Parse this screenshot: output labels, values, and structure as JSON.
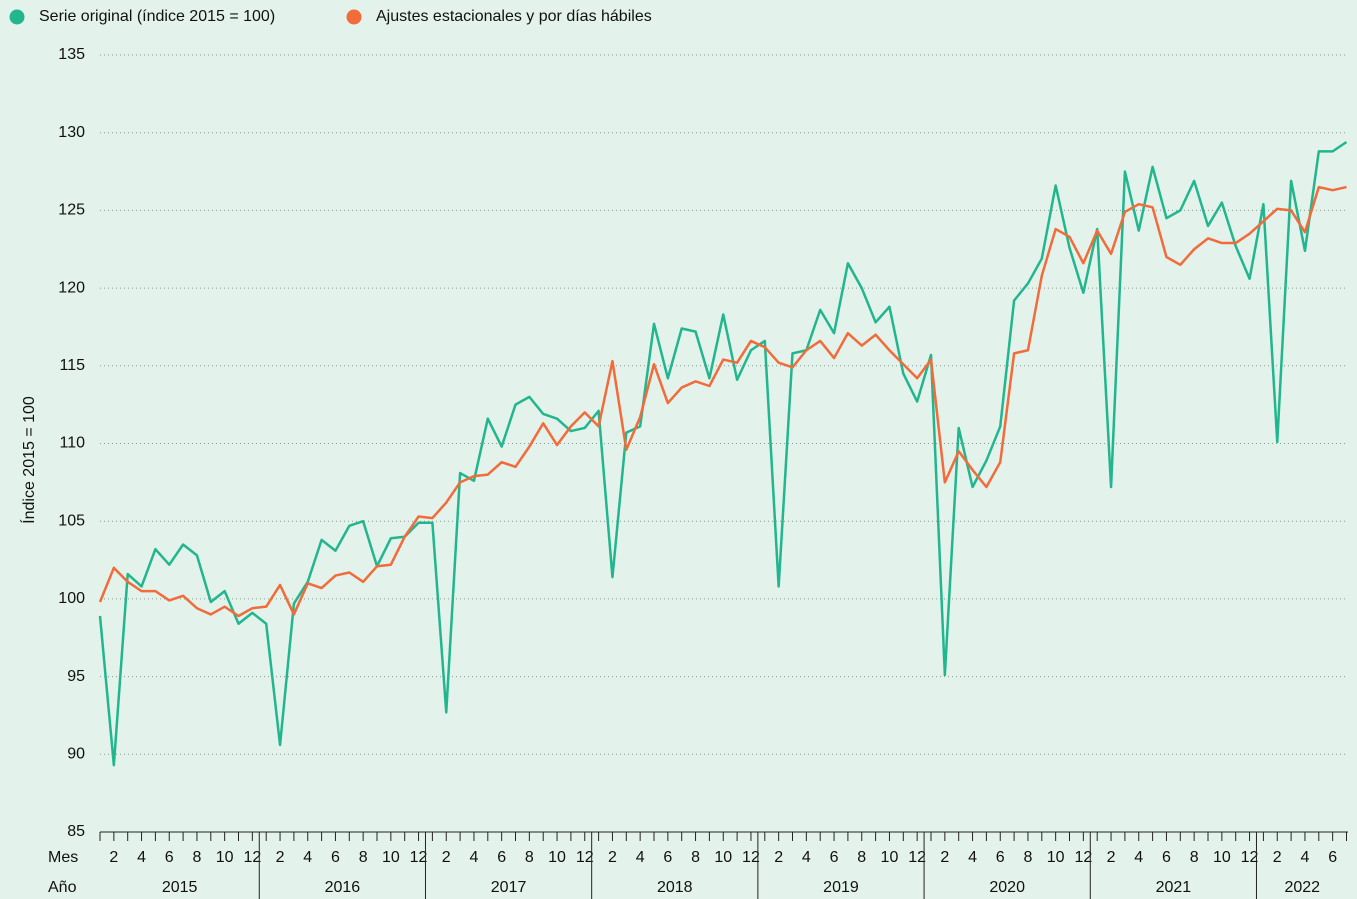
{
  "chart_data": {
    "type": "line",
    "y_label": "Índice 2015 = 100",
    "x_row_label": "Mes",
    "group_row_label": "Año",
    "categories": [
      null,
      "2",
      null,
      "4",
      null,
      "6",
      null,
      "8",
      null,
      "10",
      null,
      "12",
      null,
      "2",
      null,
      "4",
      null,
      "6",
      null,
      "8",
      null,
      "10",
      null,
      "12",
      null,
      "2",
      null,
      "4",
      null,
      "6",
      null,
      "8",
      null,
      "10",
      null,
      "12",
      null,
      "2",
      null,
      "4",
      null,
      "6",
      null,
      "8",
      null,
      "10",
      null,
      "12",
      null,
      "2",
      null,
      "4",
      null,
      "6",
      null,
      "8",
      null,
      "10",
      null,
      "12",
      null,
      "2",
      null,
      "4",
      null,
      "6",
      null,
      "8",
      null,
      "10",
      null,
      "12",
      null,
      "2",
      null,
      "4",
      null,
      "6",
      null,
      "8",
      null,
      "10",
      null,
      "12",
      null,
      "2",
      null,
      "4",
      null,
      "6",
      null
    ],
    "groups": [
      "2015",
      "2016",
      "2017",
      "2018",
      "2019",
      "2020",
      "2021",
      "2022"
    ],
    "ylim": [
      85,
      135
    ],
    "yticks": [
      85,
      90,
      95,
      100,
      105,
      110,
      115,
      120,
      125,
      130,
      135
    ],
    "grid": true,
    "legend": "top-left",
    "series": [
      {
        "name": "Serie original (índice 2015 = 100)",
        "color": "#22b68f",
        "values": [
          98.9,
          89.3,
          101.6,
          100.8,
          103.2,
          102.2,
          103.5,
          102.8,
          99.8,
          100.5,
          98.4,
          99.1,
          98.4,
          90.6,
          99.7,
          101.1,
          103.8,
          103.1,
          104.7,
          105.0,
          102.1,
          103.9,
          104.0,
          104.9,
          104.9,
          92.7,
          108.1,
          107.6,
          111.6,
          109.8,
          112.5,
          113.0,
          111.9,
          111.6,
          110.8,
          111.0,
          112.1,
          101.4,
          110.7,
          111.1,
          117.7,
          114.2,
          117.4,
          117.2,
          114.2,
          118.3,
          114.1,
          116.0,
          116.6,
          100.8,
          115.8,
          116.0,
          118.6,
          117.1,
          121.6,
          120.0,
          117.8,
          118.8,
          114.5,
          112.7,
          115.7,
          95.1,
          111.0,
          107.2,
          108.9,
          111.1,
          119.2,
          120.3,
          121.9,
          126.6,
          122.6,
          119.7,
          123.8,
          107.2,
          127.5,
          123.7,
          127.8,
          124.5,
          125.0,
          126.9,
          124.0,
          125.5,
          122.7,
          120.6,
          125.4,
          110.1,
          126.9,
          122.4,
          128.8,
          128.8,
          129.4
        ]
      },
      {
        "name": "Ajustes estacionales y por días hábiles",
        "color": "#f26b3a",
        "values": [
          99.8,
          102.0,
          101.1,
          100.5,
          100.5,
          99.9,
          100.2,
          99.4,
          99.0,
          99.5,
          98.9,
          99.4,
          99.5,
          100.9,
          99.0,
          101.0,
          100.7,
          101.5,
          101.7,
          101.1,
          102.1,
          102.2,
          104.0,
          105.3,
          105.2,
          106.2,
          107.5,
          107.9,
          108.0,
          108.8,
          108.5,
          109.8,
          111.3,
          109.9,
          111.1,
          112.0,
          111.1,
          115.3,
          109.6,
          111.7,
          115.1,
          112.6,
          113.6,
          114.0,
          113.7,
          115.4,
          115.2,
          116.6,
          116.2,
          115.2,
          114.9,
          116.0,
          116.6,
          115.5,
          117.1,
          116.3,
          117.0,
          116.0,
          115.1,
          114.2,
          115.4,
          107.5,
          109.5,
          108.3,
          107.2,
          108.8,
          115.8,
          116.0,
          120.8,
          123.8,
          123.3,
          121.6,
          123.7,
          122.2,
          124.9,
          125.4,
          125.2,
          122.0,
          121.5,
          122.5,
          123.2,
          122.9,
          122.9,
          123.5,
          124.3,
          125.1,
          125.0,
          123.6,
          126.5,
          126.3,
          126.5
        ]
      }
    ]
  }
}
